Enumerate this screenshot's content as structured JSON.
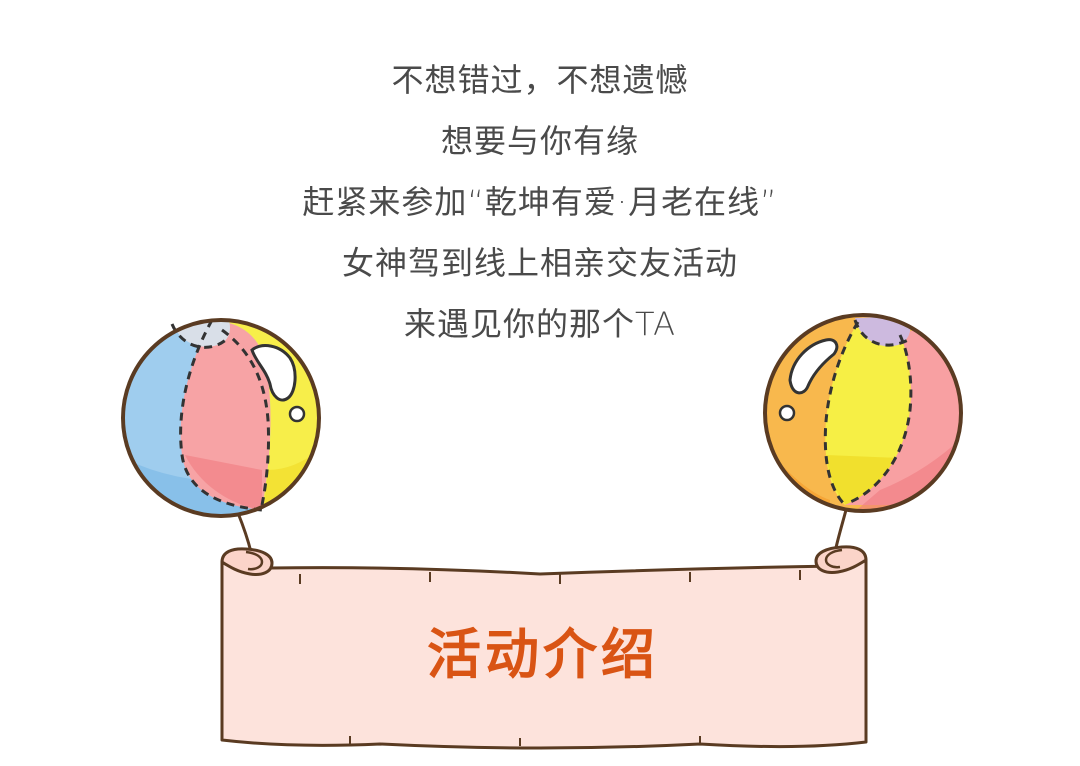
{
  "intro": {
    "lines": [
      "不想错过，不想遗憾",
      "想要与你有缘",
      "赶紧来参加“乾坤有爱·月老在线”",
      "女神驾到线上相亲交友活动",
      "来遇见你的那个TA"
    ]
  },
  "banner": {
    "title": "活动介绍",
    "title_color": "#d95414",
    "scroll_color": "#fde3dc"
  },
  "decor": {
    "left_balloon_colors": [
      "#9fc9ec",
      "#f28a8c",
      "#f5ea3c"
    ],
    "right_balloon_colors": [
      "#f8b149",
      "#f5ea3c",
      "#f28a8c",
      "#cbb6e0"
    ]
  }
}
